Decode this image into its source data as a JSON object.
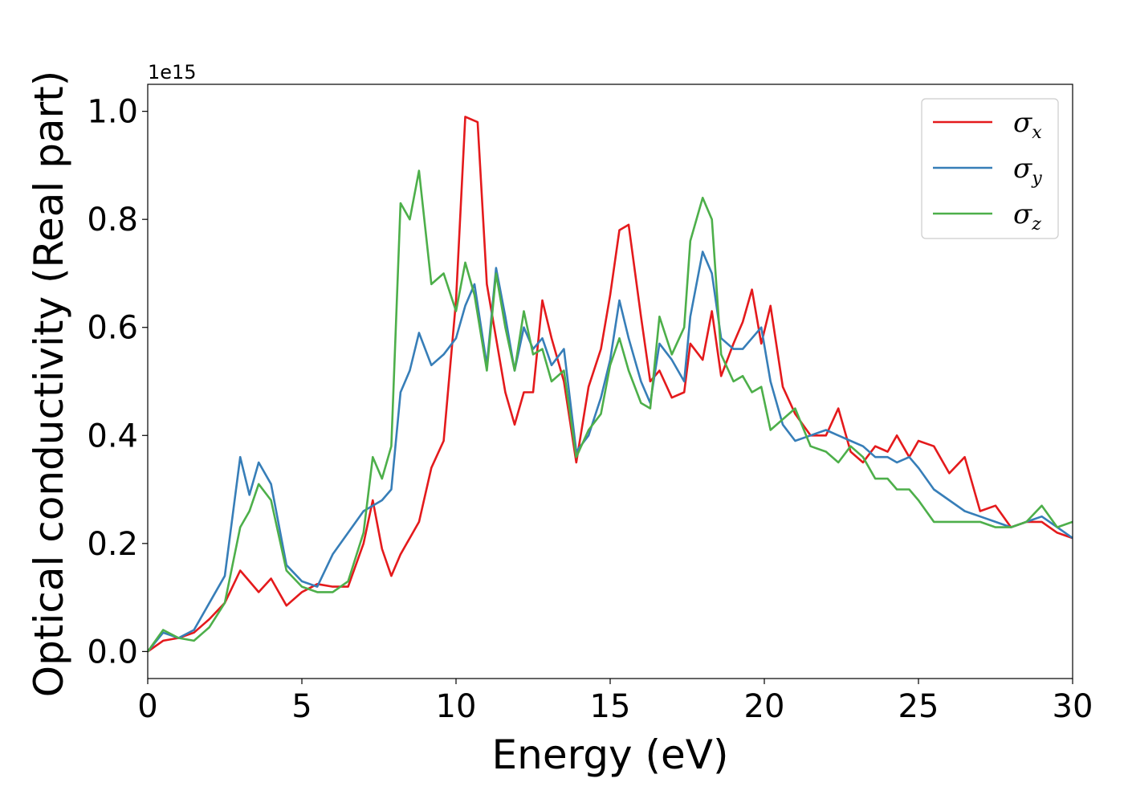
{
  "chart_data": {
    "type": "line",
    "xlabel": "Energy (eV)",
    "ylabel": "Optical conductivity (Real part)",
    "y_offset_text": "1e15",
    "xlim": [
      0,
      30
    ],
    "ylim": [
      -0.05,
      1.05
    ],
    "x_ticks": [
      0,
      5,
      10,
      15,
      20,
      25,
      30
    ],
    "x_tick_labels": [
      "0",
      "5",
      "10",
      "15",
      "20",
      "25",
      "30"
    ],
    "y_ticks": [
      0.0,
      0.2,
      0.4,
      0.6,
      0.8,
      1.0
    ],
    "y_tick_labels": [
      "0.0",
      "0.2",
      "0.4",
      "0.6",
      "0.8",
      "1.0"
    ],
    "grid": false,
    "legend_position": "top-right",
    "series": [
      {
        "name": "σx",
        "symbol": "σ",
        "subscript": "x",
        "color": "#e41a1c",
        "points": [
          [
            0,
            0
          ],
          [
            0.5,
            0.02
          ],
          [
            1,
            0.025
          ],
          [
            1.5,
            0.035
          ],
          [
            2,
            0.06
          ],
          [
            2.5,
            0.09
          ],
          [
            3,
            0.15
          ],
          [
            3.3,
            0.13
          ],
          [
            3.6,
            0.11
          ],
          [
            4,
            0.135
          ],
          [
            4.5,
            0.085
          ],
          [
            5,
            0.11
          ],
          [
            5.5,
            0.125
          ],
          [
            6,
            0.12
          ],
          [
            6.5,
            0.12
          ],
          [
            7,
            0.2
          ],
          [
            7.3,
            0.28
          ],
          [
            7.6,
            0.19
          ],
          [
            7.9,
            0.14
          ],
          [
            8.2,
            0.18
          ],
          [
            8.5,
            0.21
          ],
          [
            8.8,
            0.24
          ],
          [
            9.2,
            0.34
          ],
          [
            9.6,
            0.39
          ],
          [
            10,
            0.65
          ],
          [
            10.3,
            0.99
          ],
          [
            10.7,
            0.98
          ],
          [
            11,
            0.68
          ],
          [
            11.3,
            0.58
          ],
          [
            11.6,
            0.48
          ],
          [
            11.9,
            0.42
          ],
          [
            12.2,
            0.48
          ],
          [
            12.5,
            0.48
          ],
          [
            12.8,
            0.65
          ],
          [
            13.1,
            0.58
          ],
          [
            13.5,
            0.5
          ],
          [
            13.9,
            0.35
          ],
          [
            14.3,
            0.49
          ],
          [
            14.7,
            0.56
          ],
          [
            15,
            0.66
          ],
          [
            15.3,
            0.78
          ],
          [
            15.6,
            0.79
          ],
          [
            16,
            0.62
          ],
          [
            16.3,
            0.5
          ],
          [
            16.6,
            0.52
          ],
          [
            17,
            0.47
          ],
          [
            17.4,
            0.48
          ],
          [
            17.6,
            0.57
          ],
          [
            18,
            0.54
          ],
          [
            18.3,
            0.63
          ],
          [
            18.6,
            0.51
          ],
          [
            19,
            0.57
          ],
          [
            19.3,
            0.61
          ],
          [
            19.6,
            0.67
          ],
          [
            19.9,
            0.57
          ],
          [
            20.2,
            0.64
          ],
          [
            20.6,
            0.49
          ],
          [
            21,
            0.44
          ],
          [
            21.5,
            0.4
          ],
          [
            22,
            0.4
          ],
          [
            22.4,
            0.45
          ],
          [
            22.8,
            0.37
          ],
          [
            23.2,
            0.35
          ],
          [
            23.6,
            0.38
          ],
          [
            24,
            0.37
          ],
          [
            24.3,
            0.4
          ],
          [
            24.7,
            0.36
          ],
          [
            25,
            0.39
          ],
          [
            25.5,
            0.38
          ],
          [
            26,
            0.33
          ],
          [
            26.5,
            0.36
          ],
          [
            27,
            0.26
          ],
          [
            27.5,
            0.27
          ],
          [
            28,
            0.23
          ],
          [
            28.5,
            0.24
          ],
          [
            29,
            0.24
          ],
          [
            29.5,
            0.22
          ],
          [
            30,
            0.21
          ]
        ]
      },
      {
        "name": "σy",
        "symbol": "σ",
        "subscript": "y",
        "color": "#377eb8",
        "points": [
          [
            0,
            0
          ],
          [
            0.5,
            0.035
          ],
          [
            1,
            0.025
          ],
          [
            1.5,
            0.04
          ],
          [
            2,
            0.09
          ],
          [
            2.5,
            0.14
          ],
          [
            3,
            0.36
          ],
          [
            3.3,
            0.29
          ],
          [
            3.6,
            0.35
          ],
          [
            4,
            0.31
          ],
          [
            4.5,
            0.16
          ],
          [
            5,
            0.13
          ],
          [
            5.5,
            0.12
          ],
          [
            6,
            0.18
          ],
          [
            6.5,
            0.22
          ],
          [
            7,
            0.26
          ],
          [
            7.3,
            0.27
          ],
          [
            7.6,
            0.28
          ],
          [
            7.9,
            0.3
          ],
          [
            8.2,
            0.48
          ],
          [
            8.5,
            0.52
          ],
          [
            8.8,
            0.59
          ],
          [
            9.2,
            0.53
          ],
          [
            9.6,
            0.55
          ],
          [
            10,
            0.58
          ],
          [
            10.3,
            0.64
          ],
          [
            10.6,
            0.68
          ],
          [
            11,
            0.53
          ],
          [
            11.3,
            0.71
          ],
          [
            11.6,
            0.62
          ],
          [
            11.9,
            0.52
          ],
          [
            12.2,
            0.6
          ],
          [
            12.5,
            0.56
          ],
          [
            12.8,
            0.58
          ],
          [
            13.1,
            0.53
          ],
          [
            13.5,
            0.56
          ],
          [
            13.9,
            0.37
          ],
          [
            14.3,
            0.4
          ],
          [
            14.7,
            0.47
          ],
          [
            15,
            0.54
          ],
          [
            15.3,
            0.65
          ],
          [
            15.6,
            0.58
          ],
          [
            16,
            0.5
          ],
          [
            16.3,
            0.46
          ],
          [
            16.6,
            0.57
          ],
          [
            17,
            0.54
          ],
          [
            17.4,
            0.5
          ],
          [
            17.6,
            0.62
          ],
          [
            18,
            0.74
          ],
          [
            18.3,
            0.7
          ],
          [
            18.6,
            0.58
          ],
          [
            19,
            0.56
          ],
          [
            19.3,
            0.56
          ],
          [
            19.6,
            0.58
          ],
          [
            19.9,
            0.6
          ],
          [
            20.2,
            0.5
          ],
          [
            20.6,
            0.42
          ],
          [
            21,
            0.39
          ],
          [
            21.5,
            0.4
          ],
          [
            22,
            0.41
          ],
          [
            22.4,
            0.4
          ],
          [
            22.8,
            0.39
          ],
          [
            23.2,
            0.38
          ],
          [
            23.6,
            0.36
          ],
          [
            24,
            0.36
          ],
          [
            24.3,
            0.35
          ],
          [
            24.7,
            0.36
          ],
          [
            25,
            0.34
          ],
          [
            25.5,
            0.3
          ],
          [
            26,
            0.28
          ],
          [
            26.5,
            0.26
          ],
          [
            27,
            0.25
          ],
          [
            27.5,
            0.24
          ],
          [
            28,
            0.23
          ],
          [
            28.5,
            0.24
          ],
          [
            29,
            0.25
          ],
          [
            29.5,
            0.23
          ],
          [
            30,
            0.21
          ]
        ]
      },
      {
        "name": "σz",
        "symbol": "σ",
        "subscript": "z",
        "color": "#4daf4a",
        "points": [
          [
            0,
            0
          ],
          [
            0.5,
            0.04
          ],
          [
            1,
            0.025
          ],
          [
            1.5,
            0.02
          ],
          [
            2,
            0.045
          ],
          [
            2.5,
            0.09
          ],
          [
            3,
            0.23
          ],
          [
            3.3,
            0.26
          ],
          [
            3.6,
            0.31
          ],
          [
            4,
            0.28
          ],
          [
            4.5,
            0.15
          ],
          [
            5,
            0.12
          ],
          [
            5.5,
            0.11
          ],
          [
            6,
            0.11
          ],
          [
            6.5,
            0.13
          ],
          [
            7,
            0.22
          ],
          [
            7.3,
            0.36
          ],
          [
            7.6,
            0.32
          ],
          [
            7.9,
            0.38
          ],
          [
            8.2,
            0.83
          ],
          [
            8.5,
            0.8
          ],
          [
            8.8,
            0.89
          ],
          [
            9.2,
            0.68
          ],
          [
            9.6,
            0.7
          ],
          [
            10,
            0.63
          ],
          [
            10.3,
            0.72
          ],
          [
            10.6,
            0.66
          ],
          [
            11,
            0.52
          ],
          [
            11.3,
            0.7
          ],
          [
            11.6,
            0.6
          ],
          [
            11.9,
            0.52
          ],
          [
            12.2,
            0.63
          ],
          [
            12.5,
            0.55
          ],
          [
            12.8,
            0.56
          ],
          [
            13.1,
            0.5
          ],
          [
            13.5,
            0.52
          ],
          [
            13.9,
            0.36
          ],
          [
            14.3,
            0.41
          ],
          [
            14.7,
            0.44
          ],
          [
            15,
            0.53
          ],
          [
            15.3,
            0.58
          ],
          [
            15.6,
            0.52
          ],
          [
            16,
            0.46
          ],
          [
            16.3,
            0.45
          ],
          [
            16.6,
            0.62
          ],
          [
            17,
            0.55
          ],
          [
            17.4,
            0.6
          ],
          [
            17.6,
            0.76
          ],
          [
            18,
            0.84
          ],
          [
            18.3,
            0.8
          ],
          [
            18.6,
            0.55
          ],
          [
            19,
            0.5
          ],
          [
            19.3,
            0.51
          ],
          [
            19.6,
            0.48
          ],
          [
            19.9,
            0.49
          ],
          [
            20.2,
            0.41
          ],
          [
            20.6,
            0.43
          ],
          [
            21,
            0.45
          ],
          [
            21.5,
            0.38
          ],
          [
            22,
            0.37
          ],
          [
            22.4,
            0.35
          ],
          [
            22.8,
            0.38
          ],
          [
            23.2,
            0.36
          ],
          [
            23.6,
            0.32
          ],
          [
            24,
            0.32
          ],
          [
            24.3,
            0.3
          ],
          [
            24.7,
            0.3
          ],
          [
            25,
            0.28
          ],
          [
            25.5,
            0.24
          ],
          [
            26,
            0.24
          ],
          [
            26.5,
            0.24
          ],
          [
            27,
            0.24
          ],
          [
            27.5,
            0.23
          ],
          [
            28,
            0.23
          ],
          [
            28.5,
            0.24
          ],
          [
            29,
            0.27
          ],
          [
            29.5,
            0.23
          ],
          [
            30,
            0.24
          ]
        ]
      }
    ]
  }
}
